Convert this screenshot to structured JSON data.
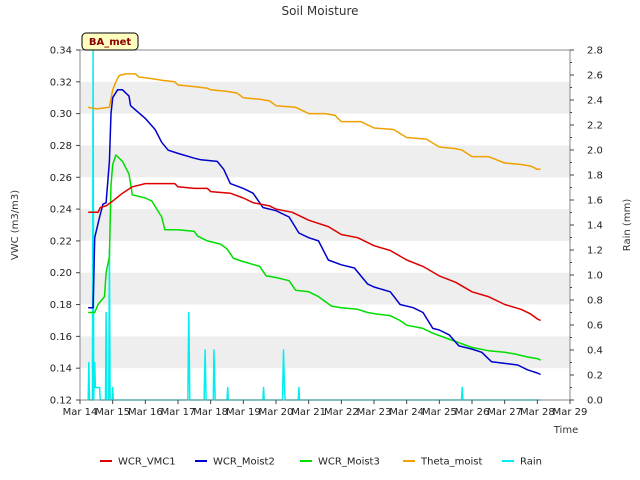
{
  "chart_data": {
    "type": "line",
    "title": "Soil Moisture",
    "badge": "BA_met",
    "xlabel": "Time",
    "ylabel": "VWC (m3/m3)",
    "y2label": "Rain (mm)",
    "ylim": [
      0.12,
      0.34
    ],
    "y2lim": [
      0.0,
      2.8
    ],
    "xlim": [
      14,
      29
    ],
    "yticks": [
      "0.12",
      "0.14",
      "0.16",
      "0.18",
      "0.20",
      "0.22",
      "0.24",
      "0.26",
      "0.28",
      "0.30",
      "0.32",
      "0.34"
    ],
    "y2ticks": [
      "0.0",
      "0.2",
      "0.4",
      "0.6",
      "0.8",
      "1.0",
      "1.2",
      "1.4",
      "1.6",
      "1.8",
      "2.0",
      "2.2",
      "2.4",
      "2.6",
      "2.8"
    ],
    "xticks": [
      {
        "v": 14,
        "label": "Mar 14"
      },
      {
        "v": 15,
        "label": "Mar 15"
      },
      {
        "v": 16,
        "label": "Mar 16"
      },
      {
        "v": 17,
        "label": "Mar 17"
      },
      {
        "v": 18,
        "label": "Mar 18"
      },
      {
        "v": 19,
        "label": "Mar 19"
      },
      {
        "v": 20,
        "label": "Mar 20"
      },
      {
        "v": 21,
        "label": "Mar 21"
      },
      {
        "v": 22,
        "label": "Mar 22"
      },
      {
        "v": 23,
        "label": "Mar 23"
      },
      {
        "v": 24,
        "label": "Mar 24"
      },
      {
        "v": 25,
        "label": "Mar 25"
      },
      {
        "v": 26,
        "label": "Mar 26"
      },
      {
        "v": 27,
        "label": "Mar 27"
      },
      {
        "v": 28,
        "label": "Mar 28"
      },
      {
        "v": 29,
        "label": "Mar 29"
      }
    ],
    "series": [
      {
        "name": "WCR_VMC1",
        "color": "#dd0000",
        "axis": "left",
        "points": [
          [
            14.25,
            0.238
          ],
          [
            14.55,
            0.238
          ],
          [
            14.62,
            0.241
          ],
          [
            14.8,
            0.242
          ],
          [
            15.0,
            0.245
          ],
          [
            15.3,
            0.25
          ],
          [
            15.6,
            0.254
          ],
          [
            16.0,
            0.256
          ],
          [
            16.9,
            0.256
          ],
          [
            17.0,
            0.254
          ],
          [
            17.5,
            0.253
          ],
          [
            17.9,
            0.253
          ],
          [
            18.0,
            0.251
          ],
          [
            18.6,
            0.25
          ],
          [
            19.0,
            0.247
          ],
          [
            19.3,
            0.244
          ],
          [
            19.8,
            0.242
          ],
          [
            20.0,
            0.24
          ],
          [
            20.5,
            0.238
          ],
          [
            21.0,
            0.233
          ],
          [
            21.6,
            0.229
          ],
          [
            22.0,
            0.224
          ],
          [
            22.5,
            0.222
          ],
          [
            23.0,
            0.217
          ],
          [
            23.5,
            0.214
          ],
          [
            24.0,
            0.208
          ],
          [
            24.5,
            0.204
          ],
          [
            25.0,
            0.198
          ],
          [
            25.5,
            0.194
          ],
          [
            26.0,
            0.188
          ],
          [
            26.5,
            0.185
          ],
          [
            27.0,
            0.18
          ],
          [
            27.5,
            0.177
          ],
          [
            27.8,
            0.174
          ],
          [
            28.0,
            0.171
          ],
          [
            28.1,
            0.17
          ]
        ]
      },
      {
        "name": "WCR_Moist2",
        "color": "#0000cc",
        "axis": "left",
        "points": [
          [
            14.25,
            0.178
          ],
          [
            14.4,
            0.178
          ],
          [
            14.45,
            0.222
          ],
          [
            14.6,
            0.235
          ],
          [
            14.7,
            0.243
          ],
          [
            14.8,
            0.244
          ],
          [
            14.9,
            0.27
          ],
          [
            14.95,
            0.3
          ],
          [
            15.0,
            0.31
          ],
          [
            15.15,
            0.315
          ],
          [
            15.3,
            0.315
          ],
          [
            15.5,
            0.311
          ],
          [
            15.55,
            0.305
          ],
          [
            16.0,
            0.297
          ],
          [
            16.3,
            0.29
          ],
          [
            16.5,
            0.282
          ],
          [
            16.7,
            0.277
          ],
          [
            17.0,
            0.275
          ],
          [
            17.5,
            0.272
          ],
          [
            17.7,
            0.271
          ],
          [
            18.2,
            0.27
          ],
          [
            18.4,
            0.265
          ],
          [
            18.6,
            0.256
          ],
          [
            19.0,
            0.253
          ],
          [
            19.3,
            0.25
          ],
          [
            19.6,
            0.241
          ],
          [
            20.0,
            0.239
          ],
          [
            20.4,
            0.235
          ],
          [
            20.7,
            0.225
          ],
          [
            21.0,
            0.222
          ],
          [
            21.3,
            0.22
          ],
          [
            21.6,
            0.208
          ],
          [
            22.0,
            0.205
          ],
          [
            22.4,
            0.203
          ],
          [
            22.8,
            0.193
          ],
          [
            23.0,
            0.191
          ],
          [
            23.5,
            0.188
          ],
          [
            23.8,
            0.18
          ],
          [
            24.2,
            0.178
          ],
          [
            24.5,
            0.175
          ],
          [
            24.8,
            0.165
          ],
          [
            25.0,
            0.164
          ],
          [
            25.3,
            0.161
          ],
          [
            25.6,
            0.154
          ],
          [
            26.0,
            0.152
          ],
          [
            26.3,
            0.15
          ],
          [
            26.6,
            0.144
          ],
          [
            27.0,
            0.143
          ],
          [
            27.4,
            0.142
          ],
          [
            27.7,
            0.139
          ],
          [
            28.0,
            0.137
          ],
          [
            28.1,
            0.136
          ]
        ]
      },
      {
        "name": "WCR_Moist3",
        "color": "#00dd00",
        "axis": "left",
        "points": [
          [
            14.25,
            0.175
          ],
          [
            14.45,
            0.175
          ],
          [
            14.55,
            0.18
          ],
          [
            14.75,
            0.185
          ],
          [
            14.8,
            0.2
          ],
          [
            14.9,
            0.21
          ],
          [
            14.95,
            0.255
          ],
          [
            15.0,
            0.268
          ],
          [
            15.1,
            0.274
          ],
          [
            15.3,
            0.27
          ],
          [
            15.5,
            0.262
          ],
          [
            15.6,
            0.249
          ],
          [
            16.0,
            0.247
          ],
          [
            16.2,
            0.245
          ],
          [
            16.5,
            0.235
          ],
          [
            16.6,
            0.227
          ],
          [
            17.0,
            0.227
          ],
          [
            17.5,
            0.226
          ],
          [
            17.6,
            0.223
          ],
          [
            17.9,
            0.22
          ],
          [
            18.3,
            0.218
          ],
          [
            18.5,
            0.215
          ],
          [
            18.7,
            0.209
          ],
          [
            19.0,
            0.207
          ],
          [
            19.5,
            0.204
          ],
          [
            19.7,
            0.198
          ],
          [
            20.0,
            0.197
          ],
          [
            20.4,
            0.195
          ],
          [
            20.6,
            0.189
          ],
          [
            21.0,
            0.188
          ],
          [
            21.3,
            0.185
          ],
          [
            21.7,
            0.179
          ],
          [
            22.0,
            0.178
          ],
          [
            22.5,
            0.177
          ],
          [
            22.8,
            0.175
          ],
          [
            23.1,
            0.174
          ],
          [
            23.5,
            0.173
          ],
          [
            23.8,
            0.17
          ],
          [
            24.0,
            0.167
          ],
          [
            24.5,
            0.165
          ],
          [
            24.8,
            0.162
          ],
          [
            25.2,
            0.159
          ],
          [
            25.6,
            0.156
          ],
          [
            26.0,
            0.153
          ],
          [
            26.5,
            0.151
          ],
          [
            27.0,
            0.15
          ],
          [
            27.3,
            0.149
          ],
          [
            27.7,
            0.147
          ],
          [
            28.0,
            0.146
          ],
          [
            28.1,
            0.145
          ]
        ]
      },
      {
        "name": "Theta_moist",
        "color": "#f0a000",
        "axis": "left",
        "points": [
          [
            14.25,
            0.304
          ],
          [
            14.5,
            0.303
          ],
          [
            14.9,
            0.304
          ],
          [
            15.0,
            0.315
          ],
          [
            15.1,
            0.32
          ],
          [
            15.2,
            0.324
          ],
          [
            15.4,
            0.325
          ],
          [
            15.7,
            0.325
          ],
          [
            15.8,
            0.323
          ],
          [
            16.2,
            0.322
          ],
          [
            16.5,
            0.321
          ],
          [
            16.9,
            0.32
          ],
          [
            17.0,
            0.318
          ],
          [
            17.5,
            0.317
          ],
          [
            17.9,
            0.316
          ],
          [
            18.0,
            0.315
          ],
          [
            18.5,
            0.314
          ],
          [
            18.8,
            0.313
          ],
          [
            19.0,
            0.31
          ],
          [
            19.5,
            0.309
          ],
          [
            19.8,
            0.308
          ],
          [
            20.0,
            0.305
          ],
          [
            20.6,
            0.304
          ],
          [
            21.0,
            0.3
          ],
          [
            21.5,
            0.3
          ],
          [
            21.8,
            0.299
          ],
          [
            22.0,
            0.295
          ],
          [
            22.6,
            0.295
          ],
          [
            23.0,
            0.291
          ],
          [
            23.6,
            0.29
          ],
          [
            24.0,
            0.285
          ],
          [
            24.6,
            0.284
          ],
          [
            25.0,
            0.279
          ],
          [
            25.5,
            0.278
          ],
          [
            25.7,
            0.277
          ],
          [
            26.0,
            0.273
          ],
          [
            26.5,
            0.273
          ],
          [
            27.0,
            0.269
          ],
          [
            27.5,
            0.268
          ],
          [
            27.8,
            0.267
          ],
          [
            28.0,
            0.265
          ],
          [
            28.1,
            0.265
          ]
        ]
      },
      {
        "name": "Rain",
        "color": "#00eeee",
        "axis": "right",
        "points": [
          [
            14.25,
            0.0
          ],
          [
            14.27,
            0.3
          ],
          [
            14.29,
            0.0
          ],
          [
            14.38,
            0.0
          ],
          [
            14.4,
            2.8
          ],
          [
            14.42,
            0.0
          ],
          [
            14.45,
            0.3
          ],
          [
            14.47,
            0.1
          ],
          [
            14.6,
            0.1
          ],
          [
            14.62,
            0.0
          ],
          [
            14.78,
            0.0
          ],
          [
            14.8,
            0.7
          ],
          [
            14.82,
            0.0
          ],
          [
            14.88,
            0.0
          ],
          [
            14.9,
            1.2
          ],
          [
            14.92,
            0.0
          ],
          [
            14.98,
            0.0
          ],
          [
            15.0,
            0.1
          ],
          [
            15.02,
            0.0
          ],
          [
            17.3,
            0.0
          ],
          [
            17.33,
            0.7
          ],
          [
            17.36,
            0.0
          ],
          [
            17.8,
            0.0
          ],
          [
            17.83,
            0.4
          ],
          [
            17.86,
            0.0
          ],
          [
            18.08,
            0.0
          ],
          [
            18.1,
            0.4
          ],
          [
            18.12,
            0.2
          ],
          [
            18.14,
            0.0
          ],
          [
            18.5,
            0.0
          ],
          [
            18.52,
            0.1
          ],
          [
            18.54,
            0.0
          ],
          [
            19.6,
            0.0
          ],
          [
            19.62,
            0.1
          ],
          [
            19.64,
            0.0
          ],
          [
            20.2,
            0.0
          ],
          [
            20.23,
            0.4
          ],
          [
            20.26,
            0.1
          ],
          [
            20.28,
            0.0
          ],
          [
            20.68,
            0.0
          ],
          [
            20.7,
            0.1
          ],
          [
            20.72,
            0.0
          ],
          [
            25.68,
            0.0
          ],
          [
            25.7,
            0.1
          ],
          [
            25.72,
            0.0
          ],
          [
            28.1,
            0.0
          ]
        ]
      }
    ]
  }
}
